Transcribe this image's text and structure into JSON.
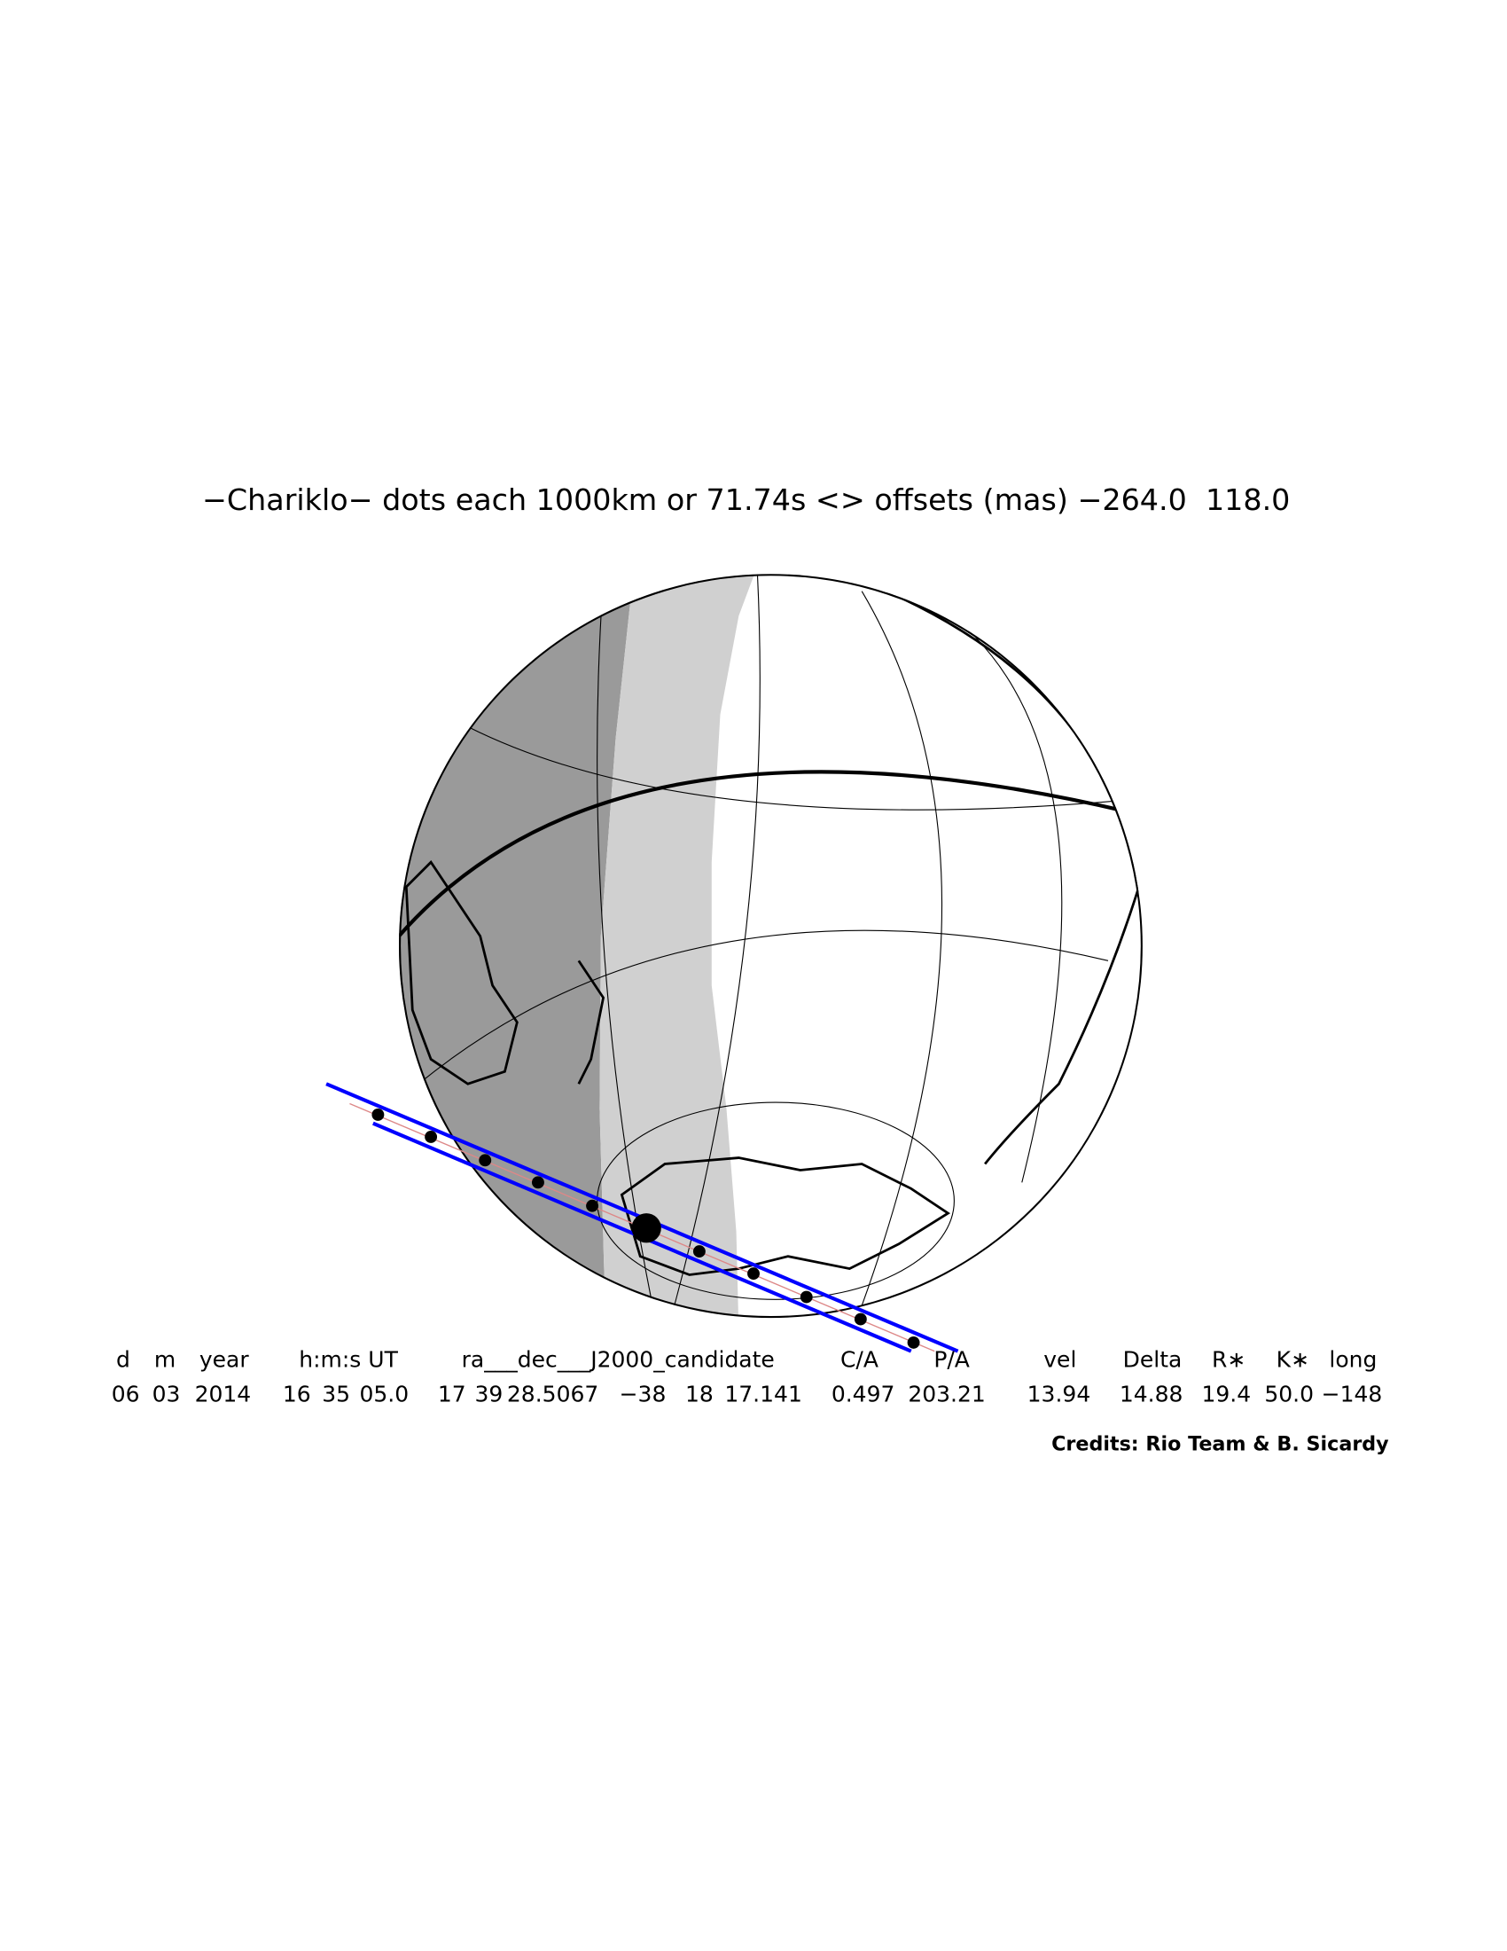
{
  "header": {
    "title": "−Chariklo− dots each 1000km or 71.74s <> offsets (mas) −264.0  118.0"
  },
  "table": {
    "columns": [
      "d",
      "m",
      "year",
      "h:m:s UT",
      "ra___dec___J2000_candidate",
      "C/A",
      "P/A",
      "vel",
      "Delta",
      "R∗",
      "K∗",
      "long"
    ],
    "rows": [
      [
        "06",
        "03",
        "2014",
        "16",
        "35",
        "05.0",
        "17",
        "39",
        "28.5067",
        "−38",
        "18",
        "17.141",
        "0.497",
        "203.21",
        "13.94",
        "14.88",
        "19.4",
        "50.0",
        "−148"
      ]
    ]
  },
  "footer": {
    "credits": "Credits: Rio Team & B. Sicardy"
  }
}
